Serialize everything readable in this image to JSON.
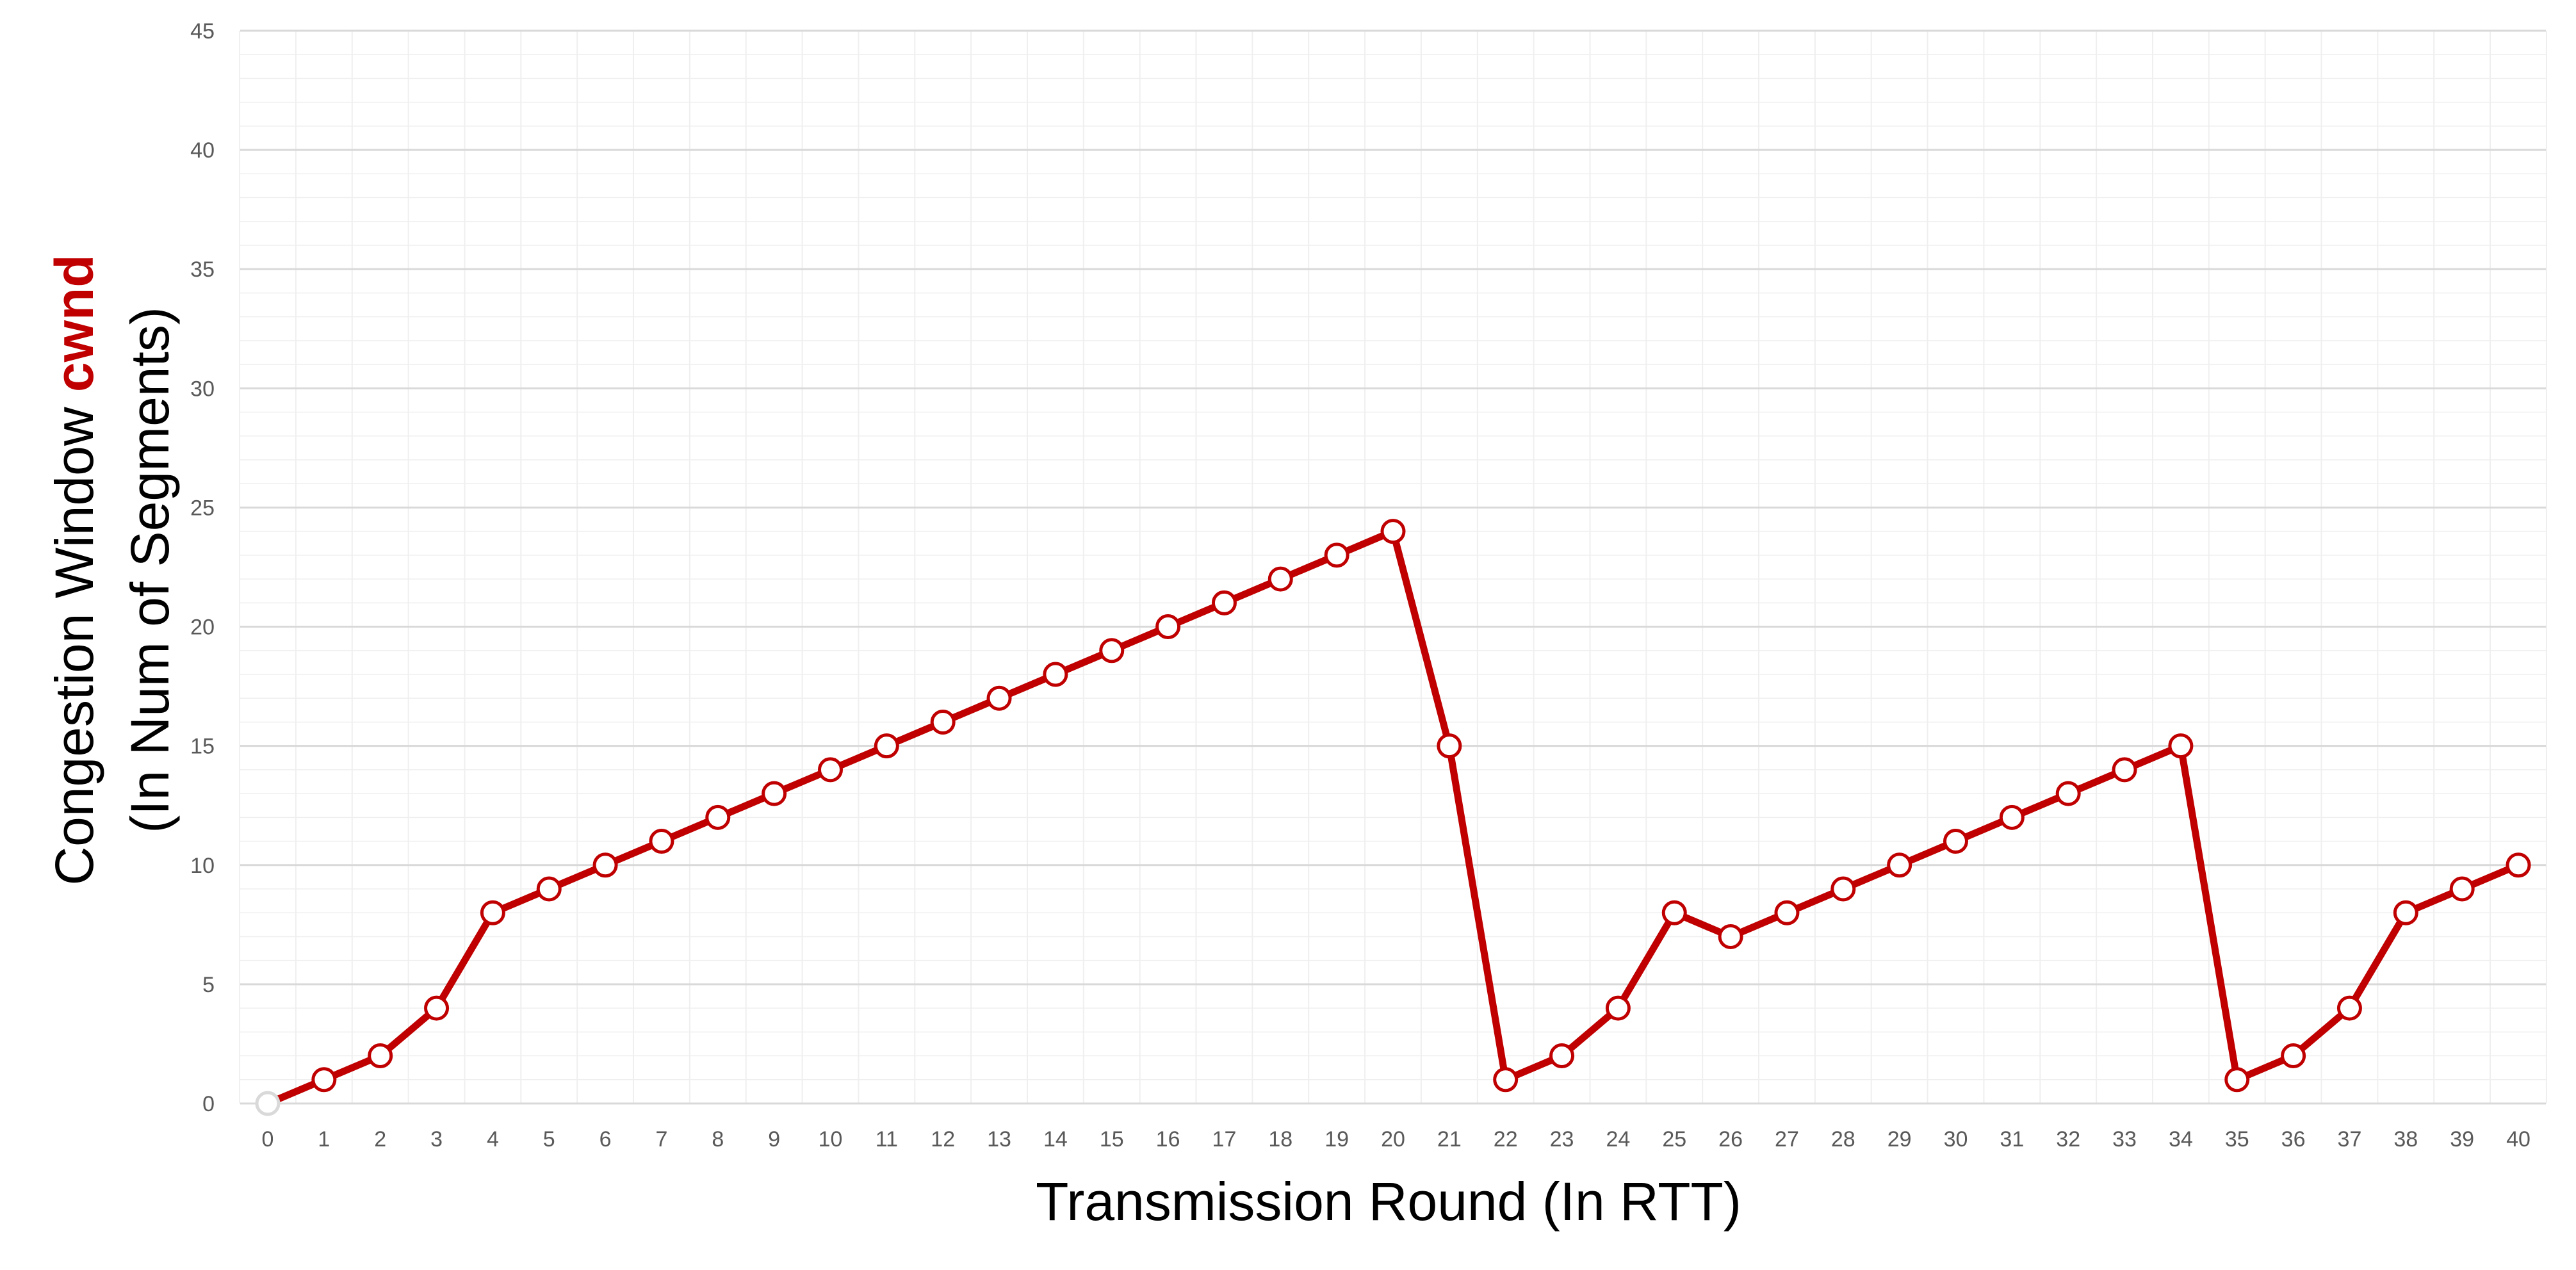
{
  "chart_data": {
    "type": "line",
    "xlabel": "Transmission Round (In RTT)",
    "ylabel": {
      "line1_prefix": "Congestion Window ",
      "line1_emphasis": "cwnd",
      "line2": "(In Num of Segments)"
    },
    "x": [
      0,
      1,
      2,
      3,
      4,
      5,
      6,
      7,
      8,
      9,
      10,
      11,
      12,
      13,
      14,
      15,
      16,
      17,
      18,
      19,
      20,
      21,
      22,
      23,
      24,
      25,
      26,
      27,
      28,
      29,
      30,
      31,
      32,
      33,
      34,
      35,
      36,
      37,
      38,
      39,
      40
    ],
    "series": [
      {
        "values": [
          0,
          1,
          2,
          4,
          8,
          9,
          10,
          11,
          12,
          13,
          14,
          15,
          16,
          17,
          18,
          19,
          20,
          21,
          22,
          23,
          24,
          15,
          1,
          2,
          4,
          8,
          7,
          8,
          9,
          10,
          11,
          12,
          13,
          14,
          15,
          1,
          2,
          4,
          8,
          9,
          10
        ]
      }
    ],
    "xlim": [
      0,
      40
    ],
    "ylim": [
      0,
      45
    ],
    "yticks": [
      0,
      5,
      10,
      15,
      20,
      25,
      30,
      35,
      40,
      45
    ],
    "xticks": [
      0,
      1,
      2,
      3,
      4,
      5,
      6,
      7,
      8,
      9,
      10,
      11,
      12,
      13,
      14,
      15,
      16,
      17,
      18,
      19,
      20,
      21,
      22,
      23,
      24,
      25,
      26,
      27,
      28,
      29,
      30,
      31,
      32,
      33,
      34,
      35,
      36,
      37,
      38,
      39,
      40
    ],
    "grid": true,
    "colors": {
      "line": "#C00000",
      "marker_fill": "#FFFFFF",
      "emphasis": "#C00000",
      "first_marker_stroke": "#D9D9D9",
      "grid_major": "#D9D9D9",
      "grid_minor": "#EFEFEF"
    }
  }
}
